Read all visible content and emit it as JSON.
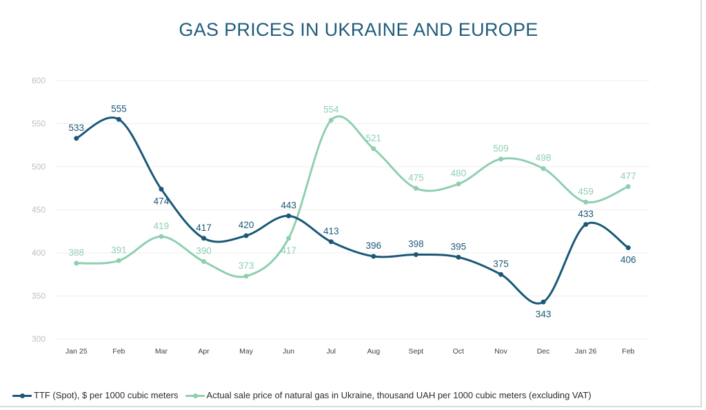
{
  "colors": {
    "ttf": "#1a5876",
    "ukraine": "#8fcfb0",
    "title": "#1f5c7a",
    "grid": "#eeeeee",
    "tick_y": "#bfbfbf",
    "tick_x": "#404040"
  },
  "chart_data": {
    "type": "line",
    "title": "GAS PRICES IN UKRAINE AND EUROPE",
    "xlabel": "",
    "ylabel": "",
    "categories": [
      "Jan 25",
      "Feb",
      "Mar",
      "Apr",
      "May",
      "Jun",
      "Jul",
      "Aug",
      "Sept",
      "Oct",
      "Nov",
      "Dec",
      "Jan 26",
      "Feb"
    ],
    "ylim": [
      300,
      600
    ],
    "yticks": [
      300,
      350,
      400,
      450,
      500,
      550,
      600
    ],
    "grid": true,
    "legend_position": "bottom",
    "smooth": true,
    "series": [
      {
        "name": "TTF (Spot), $ per 1000 cubic meters",
        "values": [
          533,
          555,
          474,
          417,
          420,
          443,
          413,
          396,
          398,
          395,
          375,
          343,
          433,
          406
        ],
        "label_position": [
          "above",
          "above",
          "below",
          "above",
          "above",
          "above",
          "above",
          "above",
          "above",
          "above",
          "above",
          "below",
          "above",
          "below"
        ]
      },
      {
        "name": "Actual sale price of natural gas in Ukraine, thousand UAH per 1000 cubic meters (excluding VAT)",
        "values": [
          388,
          391,
          419,
          390,
          373,
          417,
          554,
          521,
          475,
          480,
          509,
          498,
          459,
          477
        ],
        "label_position": [
          "above",
          "above",
          "above",
          "above",
          "above",
          "below",
          "above",
          "above",
          "above",
          "above",
          "above",
          "above",
          "above",
          "above"
        ]
      }
    ]
  }
}
